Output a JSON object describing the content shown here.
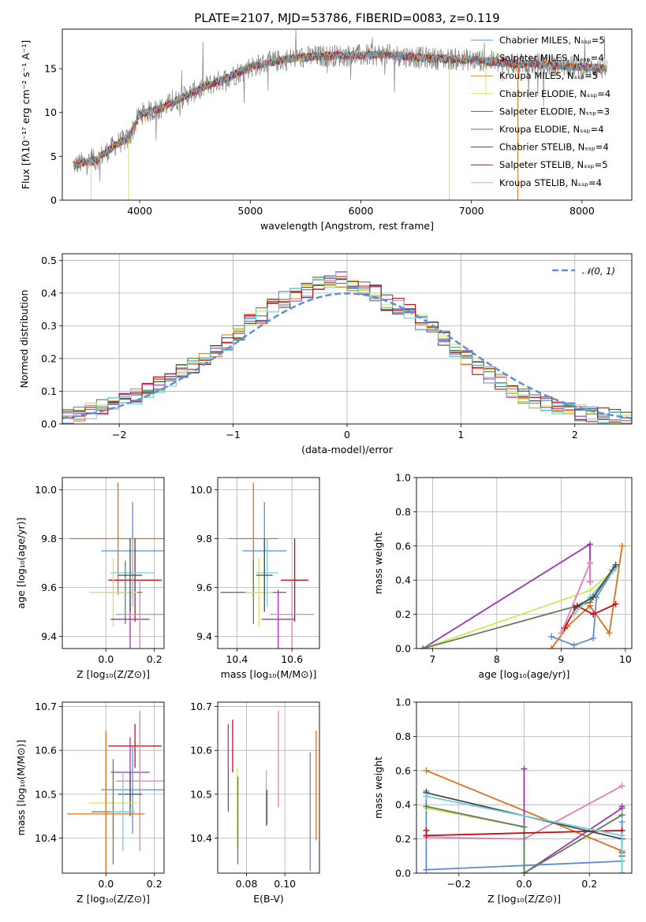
{
  "figure_title": "PLATE=2107, MJD=53786, FIBERID=0083, z=0.119",
  "colors": {
    "chabrier_miles": "#5b8fd9",
    "salpeter_miles": "#e06e1c",
    "kroupa_miles": "#d98a2b",
    "chabrier_elodie": "#5a7f5a",
    "salpeter_elodie": "#9a36b0",
    "kroupa_elodie": "#d4e55a",
    "chabrier_stelib": "#4a4a4a",
    "salpeter_stelib": "#c0101a",
    "kroupa_stelib": "#6fd0d8",
    "pink": "#e07fb8",
    "data_grey": "#808080"
  },
  "chart_data": [
    {
      "id": "spectrum",
      "type": "line",
      "title": "PLATE=2107, MJD=53786, FIBERID=0083, z=0.119",
      "xlabel": "wavelength [Angstrom, rest frame]",
      "ylabel": "Flux [fλ10⁻¹⁷ erg cm⁻² s⁻¹ A⁻¹]",
      "xlim": [
        3300,
        8450
      ],
      "ylim": [
        0,
        19.5
      ],
      "xticks": [
        4000,
        5000,
        6000,
        7000,
        8000
      ],
      "yticks": [
        0,
        5,
        10,
        15
      ],
      "legend_position": "right",
      "legend": [
        "Chabrier MILES, Nₛₛₚ=5",
        "Salpeter MILES, Nₛₛₚ=4",
        "Kroupa MILES, Nₛₛₚ=5",
        "Chabrier ELODIE, Nₛₛₚ=4",
        "Salpeter ELODIE, Nₛₛₚ=3",
        "Kroupa ELODIE, Nₛₛₚ=4",
        "Chabrier STELIB, Nₛₛₚ=4",
        "Salpeter STELIB, Nₛₛₚ=5",
        "Kroupa STELIB, Nₛₛₚ=4"
      ],
      "continuum": {
        "x": [
          3400,
          3500,
          3600,
          3700,
          3800,
          3900,
          4000,
          4200,
          4400,
          4600,
          4800,
          5000,
          5200,
          5400,
          5600,
          5800,
          6000,
          6200,
          6400,
          6600,
          6800,
          7000,
          7200,
          7400,
          7600,
          7800,
          8000,
          8200
        ],
        "y": [
          4.0,
          4.3,
          4.5,
          5.5,
          6.5,
          7.0,
          9.8,
          10.5,
          11.8,
          13.0,
          14.0,
          15.2,
          15.8,
          16.2,
          16.4,
          16.5,
          16.5,
          16.6,
          16.4,
          16.2,
          16.1,
          16.0,
          15.8,
          15.5,
          15.5,
          15.3,
          15.2,
          15.0
        ]
      }
    },
    {
      "id": "residuals",
      "type": "line",
      "xlabel": "(data-model)/error",
      "ylabel": "Normed distribution",
      "xlim": [
        -2.5,
        2.5
      ],
      "ylim": [
        0,
        0.52
      ],
      "xticks": [
        -2,
        -1,
        0,
        1,
        2
      ],
      "xtick_labels": [
        "−2",
        "−1",
        "0",
        "1",
        "2"
      ],
      "yticks": [
        0.0,
        0.1,
        0.2,
        0.3,
        0.4,
        0.5
      ],
      "ytick_labels": [
        "0.0",
        "0.1",
        "0.2",
        "0.3",
        "0.4",
        "0.5"
      ],
      "legend": [
        "𝒩(0, 1)"
      ],
      "legend_position": "top-right",
      "bin_edges_start": -2.5,
      "bin_width": 0.1,
      "histogram_envelope": [
        0.02,
        0.03,
        0.04,
        0.05,
        0.06,
        0.07,
        0.085,
        0.1,
        0.12,
        0.14,
        0.16,
        0.18,
        0.2,
        0.22,
        0.25,
        0.28,
        0.31,
        0.33,
        0.36,
        0.38,
        0.4,
        0.41,
        0.43,
        0.44,
        0.44,
        0.43,
        0.41,
        0.4,
        0.37,
        0.36,
        0.34,
        0.31,
        0.29,
        0.26,
        0.23,
        0.2,
        0.17,
        0.15,
        0.13,
        0.1,
        0.085,
        0.07,
        0.06,
        0.05,
        0.04,
        0.035,
        0.03,
        0.025,
        0.02,
        0.02
      ]
    },
    {
      "id": "z-age",
      "type": "scatter",
      "xlabel": "Z [log₁₀(Z/Z⊙)]",
      "ylabel": "age  [log₁₀(age/yr)]",
      "xlim": [
        -0.18,
        0.24
      ],
      "ylim": [
        9.35,
        10.05
      ],
      "xticks": [
        0.0,
        0.2
      ],
      "xtick_labels": [
        "0.0",
        "0.2"
      ],
      "yticks": [
        9.4,
        9.6,
        9.8,
        10.0
      ],
      "ytick_labels": [
        "9.4",
        "9.6",
        "9.8",
        "10.0"
      ],
      "points": [
        {
          "c": "salpeter_miles",
          "x": 0.05,
          "xerr": 0.2,
          "y": 9.8,
          "yerr": 0.23
        },
        {
          "c": "chabrier_miles",
          "x": 0.11,
          "xerr": 0.13,
          "y": 9.75,
          "yerr": 0.2
        },
        {
          "c": "salpeter_stelib",
          "x": 0.12,
          "xerr": 0.11,
          "y": 9.63,
          "yerr": 0.17
        },
        {
          "c": "kroupa_stelib",
          "x": 0.11,
          "xerr": 0.09,
          "y": 9.66,
          "yerr": 0.14
        },
        {
          "c": "chabrier_elodie",
          "x": 0.08,
          "xerr": 0.07,
          "y": 9.58,
          "yerr": 0.13
        },
        {
          "c": "kroupa_elodie",
          "x": 0.03,
          "xerr": 0.1,
          "y": 9.58,
          "yerr": 0.14
        },
        {
          "c": "salpeter_elodie",
          "x": 0.1,
          "xerr": 0.08,
          "y": 9.47,
          "yerr": 0.12
        },
        {
          "c": "pink",
          "x": 0.14,
          "xerr": 0.1,
          "y": 9.49,
          "yerr": 0.14
        },
        {
          "c": "chabrier_stelib",
          "x": 0.1,
          "xerr": 0.05,
          "y": 9.65,
          "yerr": 0.15
        }
      ]
    },
    {
      "id": "mass-age",
      "type": "scatter",
      "xlabel": "mass [log₁₀(M/M⊙)]",
      "ylabel": "",
      "xlim": [
        10.33,
        10.7
      ],
      "ylim": [
        9.35,
        10.05
      ],
      "xticks": [
        10.4,
        10.6
      ],
      "xtick_labels": [
        "10.4",
        "10.6"
      ],
      "yticks": [
        9.4,
        9.6,
        9.8,
        10.0
      ],
      "ytick_labels": [
        "9.4",
        "9.6",
        "9.8",
        "10.0"
      ],
      "points": [
        {
          "c": "salpeter_miles",
          "x": 10.46,
          "xerr": 0.09,
          "y": 9.8,
          "yerr": 0.23
        },
        {
          "c": "chabrier_miles",
          "x": 10.5,
          "xerr": 0.08,
          "y": 9.75,
          "yerr": 0.2
        },
        {
          "c": "salpeter_stelib",
          "x": 10.61,
          "xerr": 0.05,
          "y": 9.63,
          "yerr": 0.17
        },
        {
          "c": "kroupa_stelib",
          "x": 10.51,
          "xerr": 0.04,
          "y": 9.66,
          "yerr": 0.14
        },
        {
          "c": "chabrier_elodie",
          "x": 10.46,
          "xerr": 0.12,
          "y": 9.58,
          "yerr": 0.13
        },
        {
          "c": "kroupa_elodie",
          "x": 10.48,
          "xerr": 0.05,
          "y": 9.58,
          "yerr": 0.14
        },
        {
          "c": "salpeter_elodie",
          "x": 10.55,
          "xerr": 0.06,
          "y": 9.47,
          "yerr": 0.12
        },
        {
          "c": "pink",
          "x": 10.6,
          "xerr": 0.08,
          "y": 9.49,
          "yerr": 0.14
        },
        {
          "c": "chabrier_stelib",
          "x": 10.5,
          "xerr": 0.03,
          "y": 9.65,
          "yerr": 0.15
        }
      ]
    },
    {
      "id": "age-weight",
      "type": "line",
      "xlabel": "age  [log₁₀(age/yr)]",
      "ylabel": "mass weight",
      "xlim": [
        6.75,
        10.1
      ],
      "ylim": [
        0,
        1.0
      ],
      "xticks": [
        7,
        8,
        9,
        10
      ],
      "xtick_labels": [
        "7",
        "8",
        "9",
        "10"
      ],
      "yticks": [
        0,
        0.2,
        0.4,
        0.6,
        0.8,
        1.0
      ],
      "ytick_labels": [
        "0.0",
        "0.2",
        "0.4",
        "0.6",
        "0.8",
        "1.0"
      ],
      "series": [
        {
          "c": "salpeter_elodie",
          "x": [
            6.85,
            9.45,
            9.45,
            9.45
          ],
          "y": [
            0.0,
            0.61,
            0.5,
            0.39
          ]
        },
        {
          "c": "kroupa_elodie",
          "x": [
            6.85,
            9.45,
            9.8
          ],
          "y": [
            0.0,
            0.34,
            0.45
          ]
        },
        {
          "c": "chabrier_elodie",
          "x": [
            6.85,
            9.45,
            9.8
          ],
          "y": [
            0.0,
            0.27,
            0.46
          ]
        },
        {
          "c": "chabrier_miles",
          "x": [
            8.85,
            9.2,
            9.5,
            9.55,
            9.85
          ],
          "y": [
            0.07,
            0.02,
            0.06,
            0.3,
            0.48
          ]
        },
        {
          "c": "salpeter_miles",
          "x": [
            8.85,
            9.1,
            9.45,
            9.75,
            9.95
          ],
          "y": [
            0.0,
            0.13,
            0.25,
            0.09,
            0.6
          ]
        },
        {
          "c": "salpeter_stelib",
          "x": [
            9.05,
            9.25,
            9.5,
            9.85
          ],
          "y": [
            0.12,
            0.25,
            0.2,
            0.26
          ]
        },
        {
          "c": "kroupa_stelib",
          "x": [
            9.2,
            9.45,
            9.85
          ],
          "y": [
            0.2,
            0.3,
            0.47
          ]
        },
        {
          "c": "chabrier_stelib",
          "x": [
            9.2,
            9.5,
            9.85
          ],
          "y": [
            0.24,
            0.3,
            0.49
          ]
        },
        {
          "c": "pink",
          "x": [
            9.0,
            9.45,
            9.45
          ],
          "y": [
            0.09,
            0.5,
            0.39
          ]
        }
      ]
    },
    {
      "id": "z-mass",
      "type": "scatter",
      "xlabel": "Z [log₁₀(Z/Z⊙)]",
      "ylabel": "mass [log₁₀(M/M⊙)]",
      "xlim": [
        -0.18,
        0.24
      ],
      "ylim": [
        10.32,
        10.71
      ],
      "xticks": [
        0.0,
        0.2
      ],
      "xtick_labels": [
        "0.0",
        "0.2"
      ],
      "yticks": [
        10.4,
        10.5,
        10.6,
        10.7
      ],
      "ytick_labels": [
        "10.4",
        "10.5",
        "10.6",
        "10.7"
      ],
      "points": [
        {
          "c": "salpeter_stelib",
          "x": 0.12,
          "xerr": 0.11,
          "y": 10.61,
          "yerr": 0.05
        },
        {
          "c": "salpeter_elodie",
          "x": 0.1,
          "xerr": 0.08,
          "y": 10.55,
          "yerr": 0.08
        },
        {
          "c": "pink",
          "x": 0.14,
          "xerr": 0.1,
          "y": 10.53,
          "yerr": 0.16
        },
        {
          "c": "chabrier_miles",
          "x": 0.11,
          "xerr": 0.13,
          "y": 10.51,
          "yerr": 0.1
        },
        {
          "c": "chabrier_stelib",
          "x": 0.1,
          "xerr": 0.05,
          "y": 10.5,
          "yerr": 0.05
        },
        {
          "c": "kroupa_elodie",
          "x": 0.03,
          "xerr": 0.1,
          "y": 10.48,
          "yerr": 0.08
        },
        {
          "c": "chabrier_elodie",
          "x": 0.03,
          "xerr": 0.09,
          "y": 10.46,
          "yerr": 0.12
        },
        {
          "c": "salpeter_miles",
          "x": 0.0,
          "xerr": 0.16,
          "y": 10.455,
          "yerr": 0.19
        },
        {
          "c": "kroupa_stelib",
          "x": 0.07,
          "xerr": 0.05,
          "y": 10.46,
          "yerr": 0.09
        }
      ]
    },
    {
      "id": "ebv-mass",
      "type": "scatter",
      "xlabel": "E(B-V)",
      "ylabel": "",
      "xlim": [
        0.065,
        0.118
      ],
      "ylim": [
        10.32,
        10.71
      ],
      "xticks": [
        0.08,
        0.1
      ],
      "xtick_labels": [
        "0.08",
        "0.10"
      ],
      "yticks": [
        10.4,
        10.5,
        10.6,
        10.7
      ],
      "ytick_labels": [
        "10.4",
        "10.5",
        "10.6",
        "10.7"
      ],
      "points": [
        {
          "c": "salpeter_elodie",
          "x": 0.0705,
          "y": 10.56,
          "yerr": 0.1
        },
        {
          "c": "salpeter_stelib",
          "x": 0.0728,
          "y": 10.61,
          "yerr": 0.06
        },
        {
          "c": "kroupa_elodie",
          "x": 0.0752,
          "y": 10.47,
          "yerr": 0.09
        },
        {
          "c": "chabrier_elodie",
          "x": 0.0755,
          "y": 10.44,
          "yerr": 0.1
        },
        {
          "c": "kroupa_stelib",
          "x": 0.0903,
          "y": 10.49,
          "yerr": 0.065
        },
        {
          "c": "chabrier_stelib",
          "x": 0.0906,
          "y": 10.47,
          "yerr": 0.04
        },
        {
          "c": "pink",
          "x": 0.0966,
          "y": 10.58,
          "yerr": 0.11
        },
        {
          "c": "chabrier_miles",
          "x": 0.1132,
          "y": 10.46,
          "yerr": 0.135
        },
        {
          "c": "salpeter_miles",
          "x": 0.1163,
          "y": 10.52,
          "yerr": 0.125
        }
      ]
    },
    {
      "id": "z-weight",
      "type": "line",
      "xlabel": "Z [log₁₀(Z/Z⊙)]",
      "ylabel": "mass weight",
      "xlim": [
        -0.33,
        0.33
      ],
      "ylim": [
        0,
        1.0
      ],
      "xticks": [
        -0.2,
        0.0,
        0.2
      ],
      "xtick_labels": [
        "−0.2",
        "0.0",
        "0.2"
      ],
      "yticks": [
        0,
        0.2,
        0.4,
        0.6,
        0.8,
        1.0
      ],
      "ytick_labels": [
        "0.0",
        "0.2",
        "0.4",
        "0.6",
        "0.8",
        "1.0"
      ],
      "series": [
        {
          "c": "chabrier_miles",
          "x": [
            -0.3,
            -0.3,
            0.3,
            0.3
          ],
          "y": [
            0.48,
            0.02,
            0.07,
            0.3
          ]
        },
        {
          "c": "salpeter_miles",
          "x": [
            -0.3,
            0.3,
            0.3
          ],
          "y": [
            0.6,
            0.13,
            0.0
          ]
        },
        {
          "c": "salpeter_elodie",
          "x": [
            0.0,
            0.0,
            0.3,
            0.3
          ],
          "y": [
            0.61,
            0.0,
            0.38,
            0.39
          ]
        },
        {
          "c": "pink",
          "x": [
            -0.3,
            0.0,
            0.3
          ],
          "y": [
            0.21,
            0.2,
            0.51
          ]
        },
        {
          "c": "kroupa_elodie",
          "x": [
            -0.3,
            0.0,
            0.0,
            0.3
          ],
          "y": [
            0.38,
            0.27,
            0.0,
            0.34
          ]
        },
        {
          "c": "chabrier_elodie",
          "x": [
            -0.3,
            0.0,
            0.0,
            0.3
          ],
          "y": [
            0.39,
            0.27,
            0.0,
            0.34
          ]
        },
        {
          "c": "salpeter_stelib",
          "x": [
            -0.3,
            -0.3,
            0.3,
            0.3
          ],
          "y": [
            0.25,
            0.22,
            0.25,
            0.12
          ]
        },
        {
          "c": "chabrier_stelib",
          "x": [
            -0.3,
            0.3,
            0.3
          ],
          "y": [
            0.47,
            0.2,
            0.1
          ]
        },
        {
          "c": "kroupa_stelib",
          "x": [
            -0.3,
            0.3,
            0.3
          ],
          "y": [
            0.45,
            0.22,
            0.0
          ]
        }
      ]
    }
  ]
}
